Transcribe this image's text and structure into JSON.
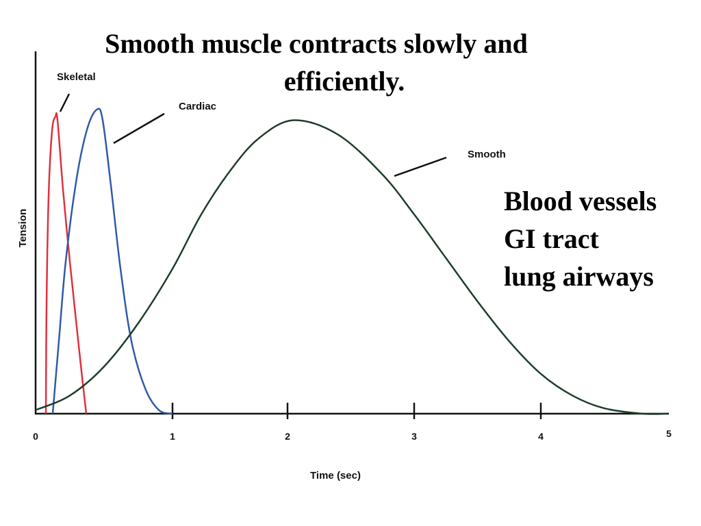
{
  "slide": {
    "title_line1": "Smooth muscle contracts slowly and",
    "title_line2": "efficiently.",
    "side_notes": [
      "Blood vessels",
      "GI tract",
      "lung airways"
    ]
  },
  "chart_data": {
    "type": "line",
    "title": "",
    "xlabel": "Time (sec)",
    "ylabel": "Tension",
    "xlim": [
      0,
      5
    ],
    "ylim": [
      0,
      1
    ],
    "x_ticks": [
      "0",
      "1",
      "2",
      "3",
      "4",
      "5"
    ],
    "y_ticks": [],
    "grid": false,
    "legend": "none (curves labeled directly)",
    "series": [
      {
        "name": "Skeletal",
        "color": "#e0303c",
        "points": [
          [
            0.075,
            0
          ],
          [
            0.08,
            0.3
          ],
          [
            0.095,
            0.6
          ],
          [
            0.12,
            0.78
          ],
          [
            0.145,
            0.82
          ],
          [
            0.16,
            0.81
          ],
          [
            0.2,
            0.62
          ],
          [
            0.25,
            0.42
          ],
          [
            0.3,
            0.24
          ],
          [
            0.34,
            0.1
          ],
          [
            0.37,
            0
          ]
        ]
      },
      {
        "name": "Cardiac",
        "color": "#2f5aa8",
        "points": [
          [
            0.125,
            0
          ],
          [
            0.17,
            0.2
          ],
          [
            0.22,
            0.42
          ],
          [
            0.3,
            0.65
          ],
          [
            0.38,
            0.79
          ],
          [
            0.45,
            0.84
          ],
          [
            0.49,
            0.81
          ],
          [
            0.55,
            0.63
          ],
          [
            0.62,
            0.4
          ],
          [
            0.7,
            0.2
          ],
          [
            0.8,
            0.07
          ],
          [
            0.9,
            0.01
          ],
          [
            1.0,
            0
          ]
        ]
      },
      {
        "name": "Smooth",
        "color": "#1f3d2a",
        "points": [
          [
            0,
            0.01
          ],
          [
            0.25,
            0.05
          ],
          [
            0.5,
            0.13
          ],
          [
            0.75,
            0.25
          ],
          [
            1,
            0.4
          ],
          [
            1.25,
            0.55
          ],
          [
            1.5,
            0.67
          ],
          [
            1.75,
            0.76
          ],
          [
            2.05,
            0.81
          ],
          [
            2.4,
            0.77
          ],
          [
            2.75,
            0.66
          ],
          [
            3,
            0.55
          ],
          [
            3.25,
            0.43
          ],
          [
            3.5,
            0.31
          ],
          [
            3.75,
            0.2
          ],
          [
            4,
            0.11
          ],
          [
            4.25,
            0.05
          ],
          [
            4.5,
            0.015
          ],
          [
            4.8,
            0
          ],
          [
            5,
            0
          ]
        ]
      }
    ]
  }
}
